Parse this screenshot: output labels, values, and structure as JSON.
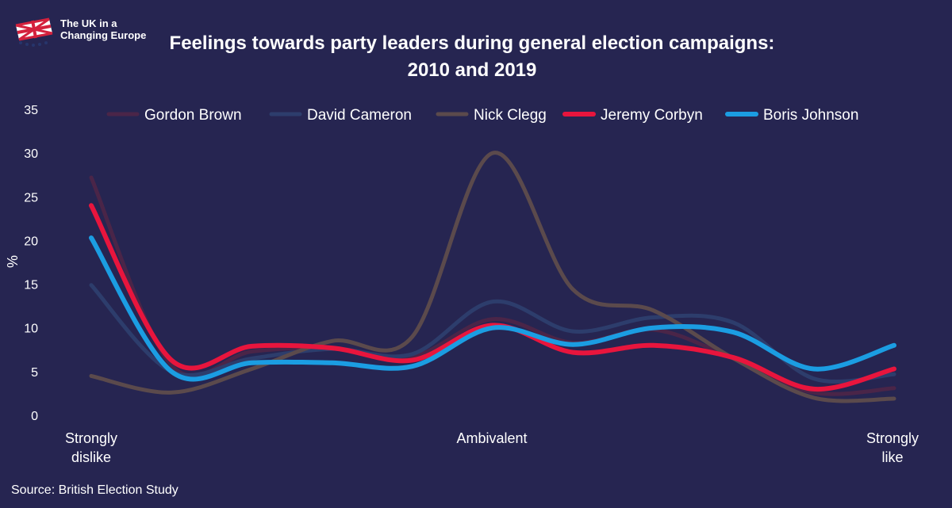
{
  "header": {
    "logo_text": "The UK in a\nChanging Europe",
    "title": "Feelings towards party leaders during general election campaigns:\n2010 and 2019"
  },
  "footer": {
    "source": "Source: British Election Study"
  },
  "chart_data": {
    "type": "line",
    "title": "Feelings towards party leaders during general election campaigns: 2010 and 2019",
    "ylabel": "%",
    "ylim": [
      0,
      35
    ],
    "yticks": [
      0,
      5,
      10,
      15,
      20,
      25,
      30,
      35
    ],
    "x": [
      0,
      1,
      2,
      3,
      4,
      5,
      6,
      7,
      8,
      9,
      10
    ],
    "x_category_labels": [
      {
        "x": 0,
        "label": "Strongly\ndislike"
      },
      {
        "x": 5,
        "label": "Ambivalent"
      },
      {
        "x": 10,
        "label": "Strongly\nlike"
      }
    ],
    "legend_position": "top",
    "grid": false,
    "series": [
      {
        "name": "Gordon Brown",
        "color": "#4a2548",
        "width": 5,
        "values": [
          27.2,
          5.7,
          7.3,
          7.7,
          6.7,
          11.0,
          8.3,
          9.8,
          6.5,
          2.6,
          3.1
        ]
      },
      {
        "name": "David Cameron",
        "color": "#2d3d6c",
        "width": 5,
        "values": [
          14.9,
          5.0,
          6.5,
          7.6,
          7.0,
          13.0,
          9.6,
          11.2,
          10.6,
          4.2,
          4.7
        ]
      },
      {
        "name": "Nick Clegg",
        "color": "#5b4a4c",
        "width": 5,
        "values": [
          4.5,
          2.6,
          5.3,
          8.5,
          9.0,
          30.0,
          14.4,
          12.0,
          6.5,
          2.0,
          1.9
        ]
      },
      {
        "name": "Jeremy Corbyn",
        "color": "#e8153d",
        "width": 6,
        "values": [
          24.0,
          6.3,
          7.9,
          7.7,
          6.3,
          10.3,
          7.2,
          8.0,
          6.6,
          3.0,
          5.3
        ]
      },
      {
        "name": "Boris Johnson",
        "color": "#1b9de2",
        "width": 6,
        "values": [
          20.3,
          5.0,
          6.0,
          6.0,
          5.6,
          10.0,
          8.1,
          10.0,
          9.5,
          5.3,
          8.0
        ]
      }
    ]
  }
}
